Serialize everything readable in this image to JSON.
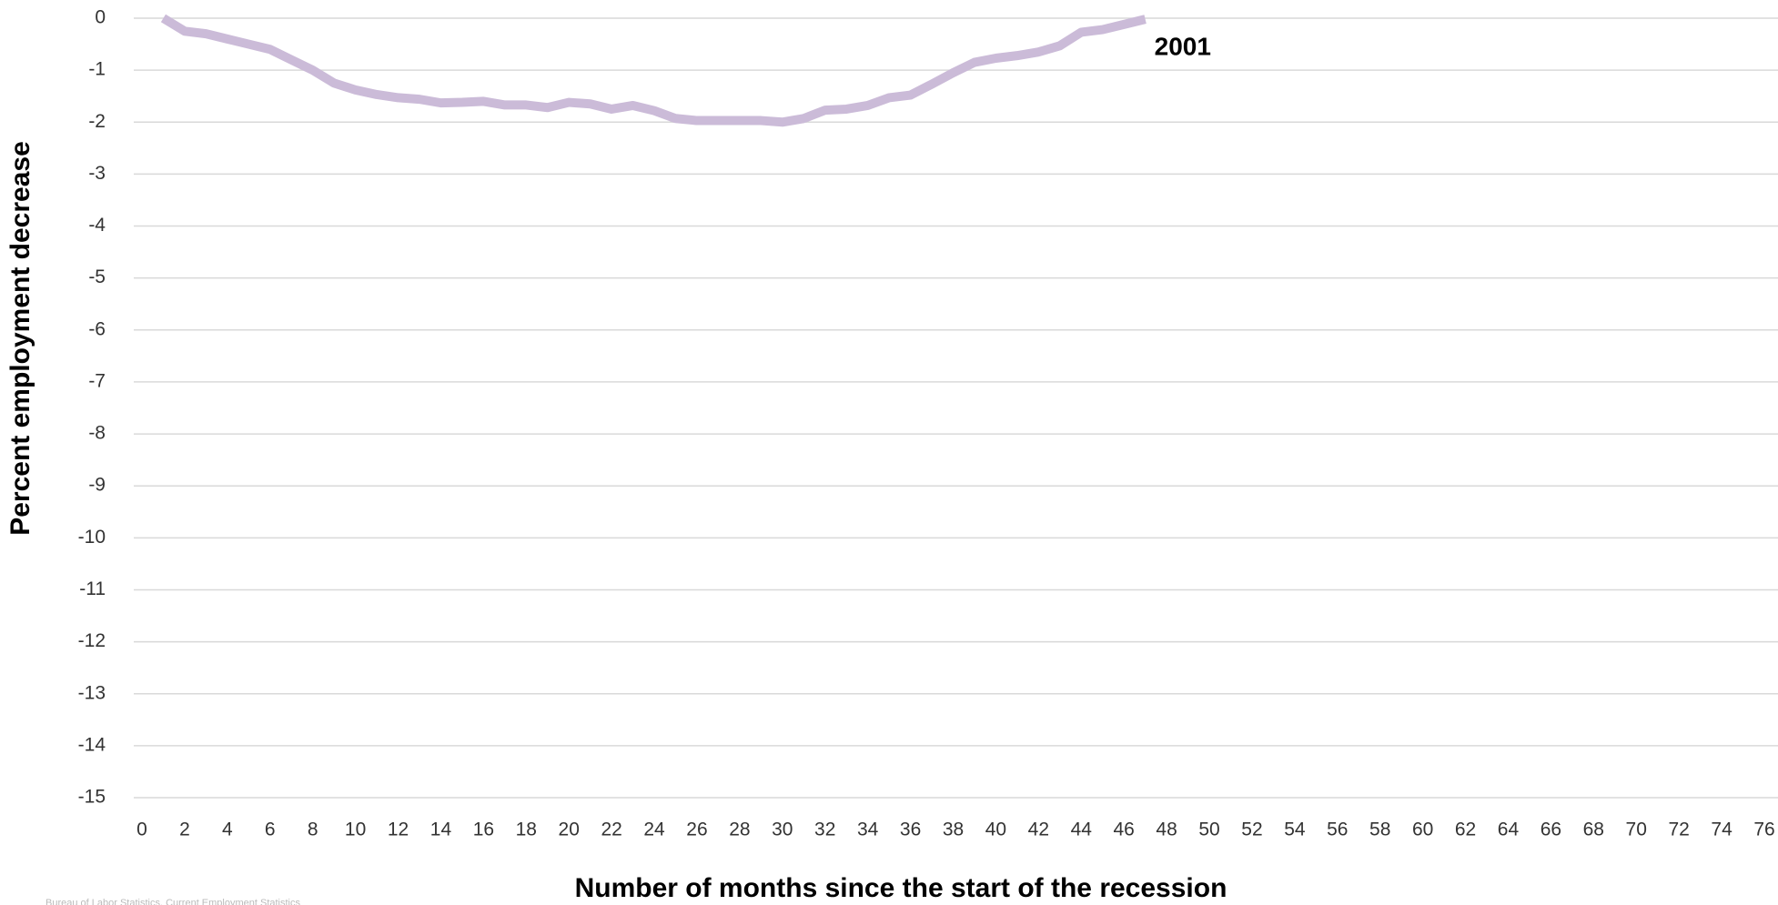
{
  "chart_data": {
    "type": "line",
    "xlabel": "Number of months since the start of the recession",
    "ylabel": "Percent employment decrease",
    "source": "Bureau of Labor Statistics, Current Employment Statistics",
    "x": [
      1,
      2,
      3,
      4,
      5,
      6,
      7,
      8,
      9,
      10,
      11,
      12,
      13,
      14,
      15,
      16,
      17,
      18,
      19,
      20,
      21,
      22,
      23,
      24,
      25,
      26,
      27,
      28,
      29,
      30,
      31,
      32,
      33,
      34,
      35,
      36,
      37,
      38,
      39,
      40,
      41,
      42,
      43,
      44,
      45,
      46,
      47
    ],
    "series": [
      {
        "name": "2001",
        "color": "#cbbbd8",
        "values": [
          0,
          -0.25,
          -0.3,
          -0.4,
          -0.5,
          -0.6,
          -0.8,
          -1.0,
          -1.25,
          -1.38,
          -1.47,
          -1.53,
          -1.56,
          -1.63,
          -1.62,
          -1.6,
          -1.67,
          -1.67,
          -1.72,
          -1.62,
          -1.65,
          -1.75,
          -1.68,
          -1.78,
          -1.93,
          -1.97,
          -1.97,
          -1.97,
          -1.97,
          -2.0,
          -1.93,
          -1.77,
          -1.75,
          -1.68,
          -1.53,
          -1.48,
          -1.27,
          -1.05,
          -0.85,
          -0.77,
          -0.72,
          -0.65,
          -0.53,
          -0.27,
          -0.22,
          -0.12,
          -0.02
        ]
      }
    ],
    "xlim": [
      0,
      76
    ],
    "xticks": [
      0,
      2,
      4,
      6,
      8,
      10,
      12,
      14,
      16,
      18,
      20,
      22,
      24,
      26,
      28,
      30,
      32,
      34,
      36,
      38,
      40,
      42,
      44,
      46,
      48,
      50,
      52,
      54,
      56,
      58,
      60,
      62,
      64,
      66,
      68,
      70,
      72,
      74,
      76
    ],
    "ylim": [
      -15,
      0
    ],
    "yticks": [
      0,
      -1,
      -2,
      -3,
      -4,
      -5,
      -6,
      -7,
      -8,
      -9,
      -10,
      -11,
      -12,
      -13,
      -14,
      -15
    ],
    "grid": true
  }
}
